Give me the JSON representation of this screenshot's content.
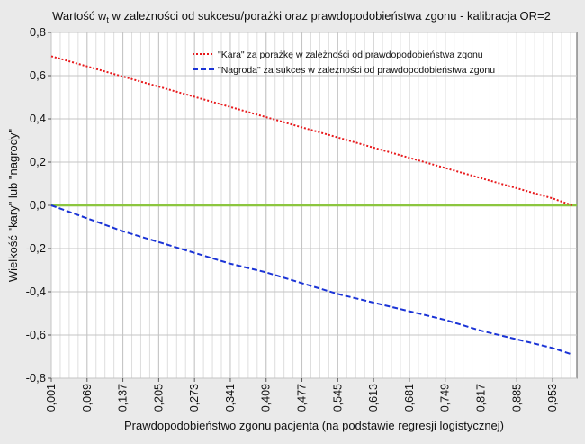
{
  "chart_data": {
    "type": "line",
    "title_prefix": "Wartość w",
    "title_subscript": "t",
    "title_suffix": " w zależności od sukcesu/porażki oraz prawdopodobieństwa zgonu - kalibracja OR=2",
    "xlabel": "Prawdopodobieństwo zgonu pacjenta (na podstawie regresji logistycznej)",
    "ylabel": "Wielkość \"kary\" lub \"nagrody\"",
    "xlim": [
      0.001,
      0.999
    ],
    "ylim": [
      -0.8,
      0.8
    ],
    "x_ticks": [
      "0,001",
      "0,069",
      "0,137",
      "0,205",
      "0,273",
      "0,341",
      "0,409",
      "0,477",
      "0,545",
      "0,613",
      "0,681",
      "0,749",
      "0,817",
      "0,885",
      "0,953"
    ],
    "x_tick_values": [
      0.001,
      0.069,
      0.137,
      0.205,
      0.273,
      0.341,
      0.409,
      0.477,
      0.545,
      0.613,
      0.681,
      0.749,
      0.817,
      0.885,
      0.953
    ],
    "x_minor_step": 0.017,
    "y_ticks": [
      "0,8",
      "0,6",
      "0,4",
      "0,2",
      "0,0",
      "-0,2",
      "-0,4",
      "-0,6",
      "-0,8"
    ],
    "y_tick_values": [
      0.8,
      0.6,
      0.4,
      0.2,
      0.0,
      -0.2,
      -0.4,
      -0.6,
      -0.8
    ],
    "reference_line": {
      "y": 0.0,
      "color": "#8cc63f"
    },
    "legend_position": "top-right",
    "series": [
      {
        "name": "\"Kara\" za porażkę w zależności od prawdopodobieństwa zgonu",
        "style": "dotted",
        "color": "#e8191c",
        "x": [
          0.001,
          0.069,
          0.137,
          0.205,
          0.273,
          0.341,
          0.409,
          0.477,
          0.545,
          0.613,
          0.681,
          0.749,
          0.817,
          0.885,
          0.953,
          0.99
        ],
        "y": [
          0.69,
          0.643,
          0.596,
          0.549,
          0.502,
          0.455,
          0.408,
          0.361,
          0.314,
          0.267,
          0.22,
          0.173,
          0.126,
          0.079,
          0.032,
          0.0
        ]
      },
      {
        "name": "\"Nagroda\" za sukces w zależności od prawdopodobieństwa zgonu",
        "style": "dashed",
        "color": "#1a33d6",
        "x": [
          0.001,
          0.069,
          0.137,
          0.205,
          0.273,
          0.341,
          0.409,
          0.477,
          0.545,
          0.613,
          0.681,
          0.749,
          0.817,
          0.885,
          0.953,
          0.99
        ],
        "y": [
          0.0,
          -0.06,
          -0.12,
          -0.17,
          -0.22,
          -0.27,
          -0.31,
          -0.36,
          -0.41,
          -0.45,
          -0.49,
          -0.53,
          -0.58,
          -0.62,
          -0.66,
          -0.69
        ]
      }
    ]
  }
}
